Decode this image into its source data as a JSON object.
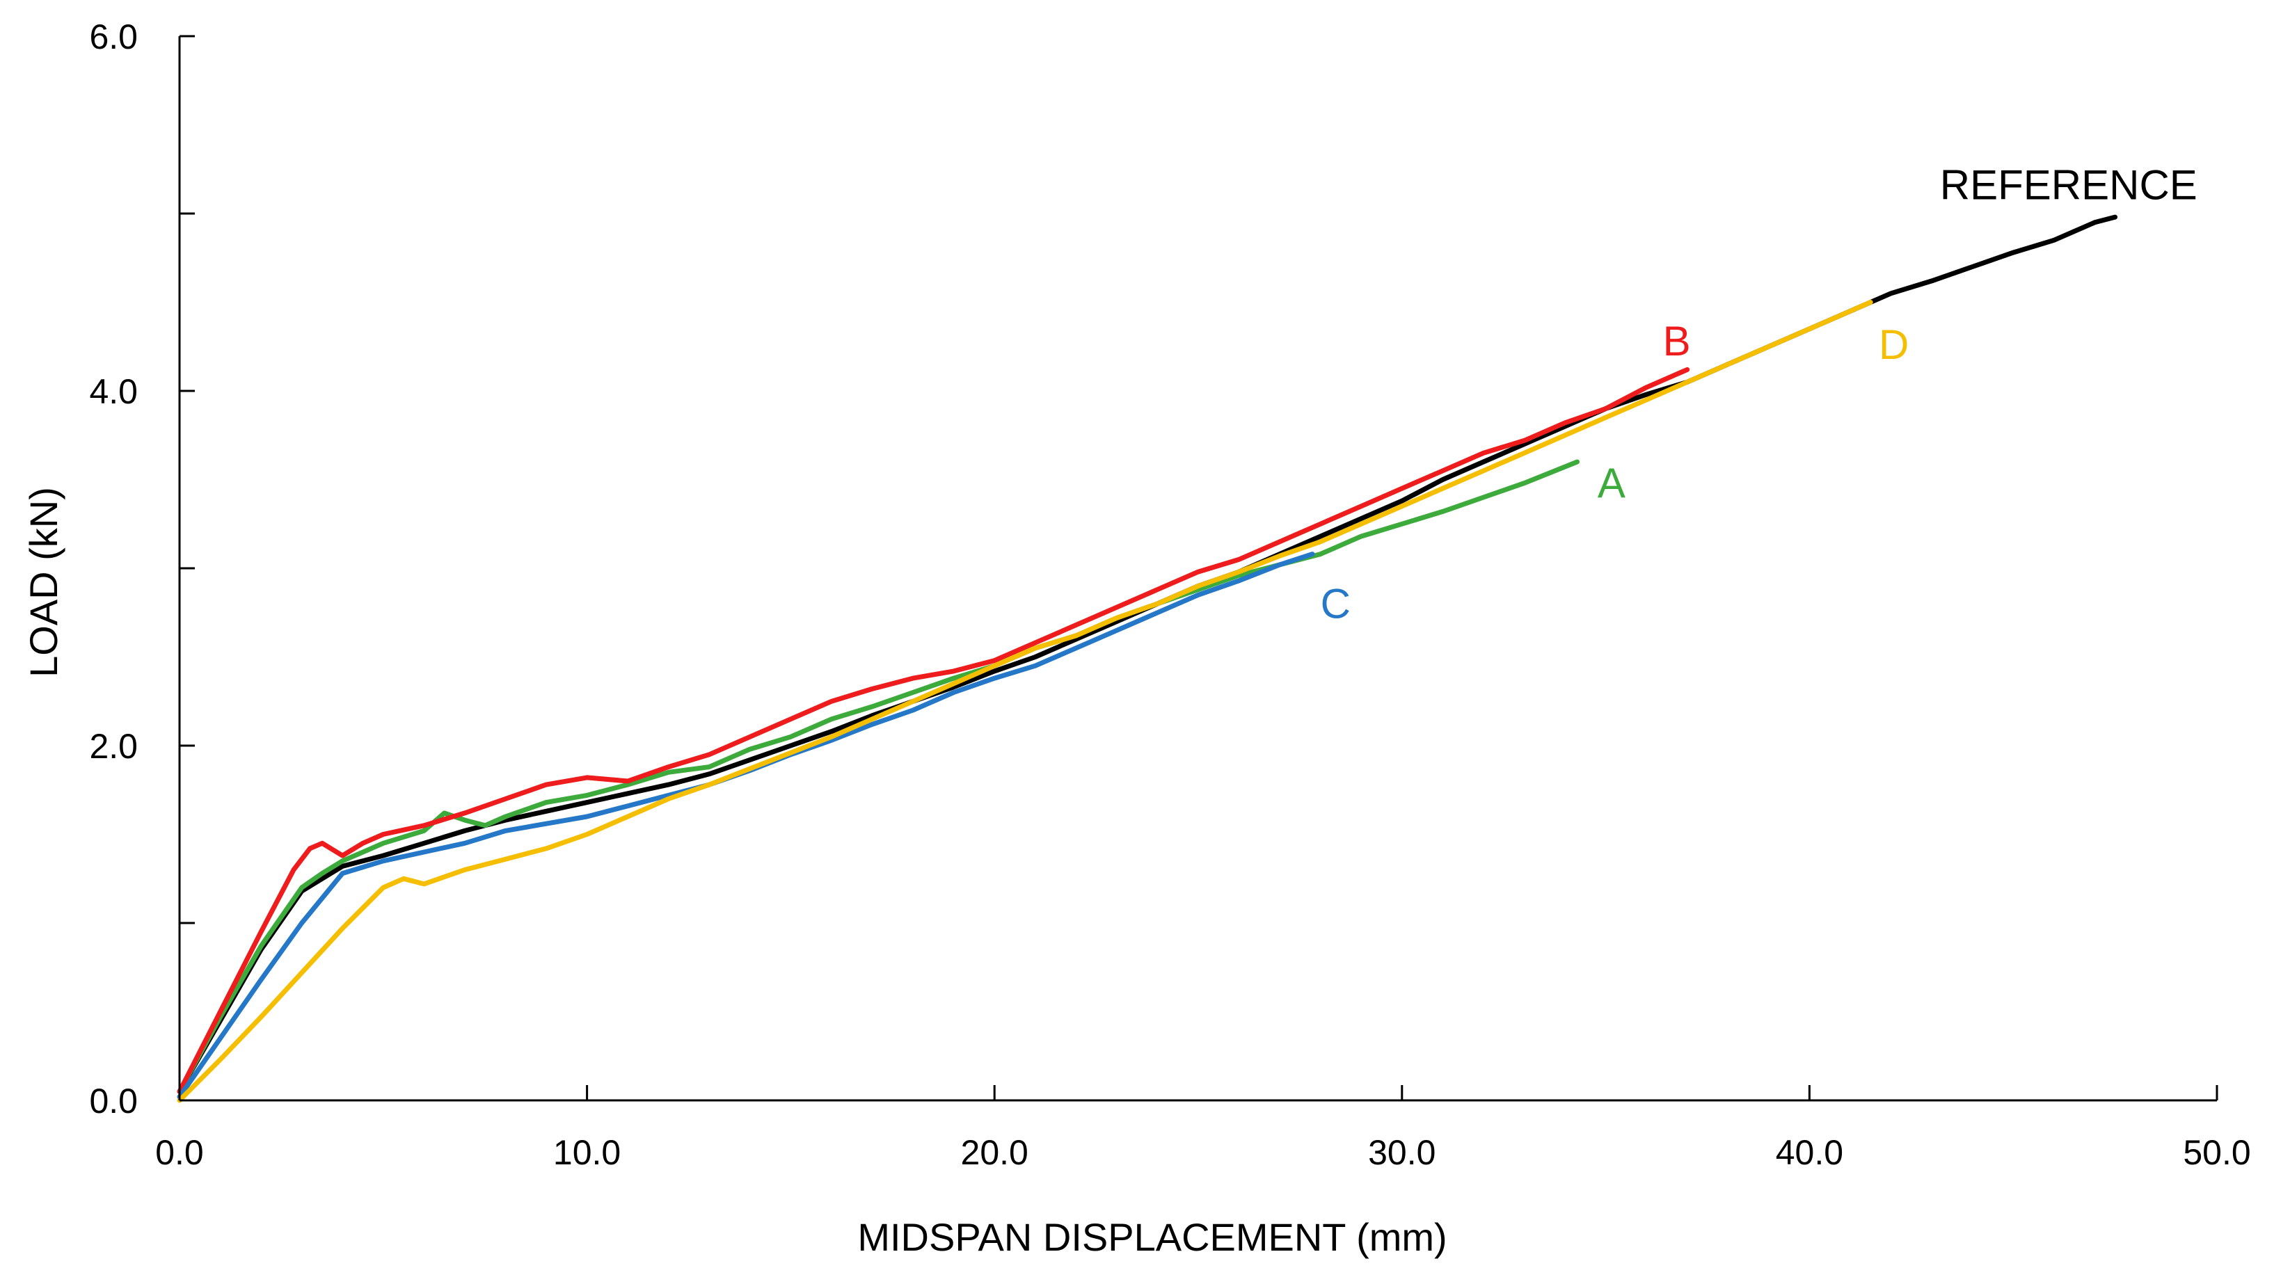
{
  "chart_data": {
    "type": "line",
    "title": "",
    "xlabel": "MIDSPAN DISPLACEMENT (mm)",
    "ylabel": "LOAD (kN)",
    "xlim": [
      0,
      50
    ],
    "ylim": [
      0,
      6
    ],
    "grid": false,
    "x_ticks": [
      0,
      10,
      20,
      30,
      40,
      50
    ],
    "x_tick_labels": [
      "0.0",
      "10.0",
      "20.0",
      "30.0",
      "40.0",
      "50.0"
    ],
    "y_ticks": [
      0,
      1,
      2,
      3,
      4,
      5,
      6
    ],
    "y_tick_labels": [
      "0.0",
      "",
      "2.0",
      "",
      "4.0",
      "",
      "6.0"
    ],
    "series": [
      {
        "name": "A",
        "label": "A",
        "color": "#3CAB3C",
        "label_at": [
          34.8,
          3.4
        ],
        "points": [
          [
            0,
            0.05
          ],
          [
            1,
            0.47
          ],
          [
            2,
            0.87
          ],
          [
            3,
            1.2
          ],
          [
            3.5,
            1.28
          ],
          [
            4,
            1.35
          ],
          [
            5,
            1.45
          ],
          [
            6,
            1.52
          ],
          [
            6.5,
            1.62
          ],
          [
            7,
            1.58
          ],
          [
            7.5,
            1.55
          ],
          [
            8,
            1.6
          ],
          [
            9,
            1.68
          ],
          [
            10,
            1.72
          ],
          [
            11,
            1.78
          ],
          [
            12,
            1.85
          ],
          [
            13,
            1.88
          ],
          [
            14,
            1.98
          ],
          [
            15,
            2.05
          ],
          [
            16,
            2.15
          ],
          [
            17,
            2.22
          ],
          [
            18,
            2.3
          ],
          [
            19,
            2.38
          ],
          [
            20,
            2.45
          ],
          [
            21,
            2.55
          ],
          [
            22,
            2.62
          ],
          [
            23,
            2.72
          ],
          [
            24,
            2.8
          ],
          [
            25,
            2.88
          ],
          [
            26,
            2.96
          ],
          [
            27,
            3.02
          ],
          [
            28,
            3.08
          ],
          [
            29,
            3.18
          ],
          [
            30,
            3.25
          ],
          [
            31,
            3.32
          ],
          [
            32,
            3.4
          ],
          [
            33,
            3.48
          ],
          [
            34.3,
            3.6
          ]
        ]
      },
      {
        "name": "B",
        "label": "B",
        "color": "#EE1C1C",
        "label_at": [
          36.4,
          4.2
        ],
        "points": [
          [
            0,
            0.05
          ],
          [
            1,
            0.5
          ],
          [
            2,
            0.95
          ],
          [
            2.8,
            1.3
          ],
          [
            3.2,
            1.42
          ],
          [
            3.5,
            1.45
          ],
          [
            4,
            1.38
          ],
          [
            4.5,
            1.45
          ],
          [
            5,
            1.5
          ],
          [
            6,
            1.55
          ],
          [
            7,
            1.62
          ],
          [
            8,
            1.7
          ],
          [
            9,
            1.78
          ],
          [
            10,
            1.82
          ],
          [
            11,
            1.8
          ],
          [
            12,
            1.88
          ],
          [
            13,
            1.95
          ],
          [
            14,
            2.05
          ],
          [
            15,
            2.15
          ],
          [
            16,
            2.25
          ],
          [
            17,
            2.32
          ],
          [
            18,
            2.38
          ],
          [
            19,
            2.42
          ],
          [
            20,
            2.48
          ],
          [
            21,
            2.58
          ],
          [
            22,
            2.68
          ],
          [
            23,
            2.78
          ],
          [
            24,
            2.88
          ],
          [
            25,
            2.98
          ],
          [
            26,
            3.05
          ],
          [
            27,
            3.15
          ],
          [
            28,
            3.25
          ],
          [
            29,
            3.35
          ],
          [
            30,
            3.45
          ],
          [
            31,
            3.55
          ],
          [
            32,
            3.65
          ],
          [
            33,
            3.72
          ],
          [
            34,
            3.82
          ],
          [
            35,
            3.9
          ],
          [
            36,
            4.02
          ],
          [
            37,
            4.12
          ]
        ]
      },
      {
        "name": "C",
        "label": "C",
        "color": "#2578C8",
        "label_at": [
          28.0,
          2.72
        ],
        "points": [
          [
            0,
            0.02
          ],
          [
            1,
            0.35
          ],
          [
            2,
            0.68
          ],
          [
            3,
            1.0
          ],
          [
            4,
            1.28
          ],
          [
            5,
            1.35
          ],
          [
            6,
            1.4
          ],
          [
            7,
            1.45
          ],
          [
            8,
            1.52
          ],
          [
            9,
            1.56
          ],
          [
            10,
            1.6
          ],
          [
            11,
            1.66
          ],
          [
            12,
            1.72
          ],
          [
            13,
            1.78
          ],
          [
            14,
            1.86
          ],
          [
            15,
            1.95
          ],
          [
            16,
            2.03
          ],
          [
            17,
            2.12
          ],
          [
            18,
            2.2
          ],
          [
            19,
            2.3
          ],
          [
            20,
            2.38
          ],
          [
            21,
            2.45
          ],
          [
            22,
            2.55
          ],
          [
            23,
            2.65
          ],
          [
            24,
            2.75
          ],
          [
            25,
            2.85
          ],
          [
            26,
            2.93
          ],
          [
            27,
            3.02
          ],
          [
            27.8,
            3.08
          ]
        ]
      },
      {
        "name": "D",
        "label": "D",
        "color": "#F5BE00",
        "label_at": [
          41.7,
          4.18
        ],
        "points": [
          [
            0,
            0
          ],
          [
            1,
            0.23
          ],
          [
            2,
            0.47
          ],
          [
            3,
            0.72
          ],
          [
            4,
            0.97
          ],
          [
            5,
            1.2
          ],
          [
            5.5,
            1.25
          ],
          [
            6,
            1.22
          ],
          [
            7,
            1.3
          ],
          [
            8,
            1.36
          ],
          [
            9,
            1.42
          ],
          [
            10,
            1.5
          ],
          [
            11,
            1.6
          ],
          [
            12,
            1.7
          ],
          [
            13,
            1.78
          ],
          [
            14,
            1.87
          ],
          [
            15,
            1.96
          ],
          [
            16,
            2.05
          ],
          [
            17,
            2.15
          ],
          [
            18,
            2.25
          ],
          [
            19,
            2.35
          ],
          [
            20,
            2.45
          ],
          [
            21,
            2.55
          ],
          [
            22,
            2.62
          ],
          [
            23,
            2.72
          ],
          [
            24,
            2.8
          ],
          [
            25,
            2.9
          ],
          [
            26,
            2.98
          ],
          [
            27,
            3.07
          ],
          [
            28,
            3.15
          ],
          [
            29,
            3.25
          ],
          [
            30,
            3.35
          ],
          [
            31,
            3.45
          ],
          [
            32,
            3.55
          ],
          [
            33,
            3.65
          ],
          [
            34,
            3.75
          ],
          [
            35,
            3.85
          ],
          [
            36,
            3.95
          ],
          [
            37,
            4.05
          ],
          [
            38,
            4.15
          ],
          [
            39,
            4.25
          ],
          [
            40,
            4.35
          ],
          [
            41,
            4.45
          ],
          [
            41.5,
            4.5
          ]
        ]
      },
      {
        "name": "REFERENCE",
        "label": "REFERENCE",
        "color": "#000000",
        "label_at": [
          43.2,
          5.08
        ],
        "points": [
          [
            0,
            0.05
          ],
          [
            1,
            0.45
          ],
          [
            2,
            0.85
          ],
          [
            3,
            1.18
          ],
          [
            4,
            1.32
          ],
          [
            5,
            1.38
          ],
          [
            6,
            1.45
          ],
          [
            7,
            1.52
          ],
          [
            8,
            1.58
          ],
          [
            9,
            1.63
          ],
          [
            10,
            1.68
          ],
          [
            11,
            1.73
          ],
          [
            12,
            1.78
          ],
          [
            13,
            1.84
          ],
          [
            14,
            1.92
          ],
          [
            15,
            2.0
          ],
          [
            16,
            2.08
          ],
          [
            17,
            2.17
          ],
          [
            18,
            2.25
          ],
          [
            19,
            2.33
          ],
          [
            20,
            2.42
          ],
          [
            21,
            2.5
          ],
          [
            22,
            2.6
          ],
          [
            23,
            2.7
          ],
          [
            24,
            2.8
          ],
          [
            25,
            2.9
          ],
          [
            26,
            2.98
          ],
          [
            27,
            3.08
          ],
          [
            28,
            3.18
          ],
          [
            29,
            3.28
          ],
          [
            30,
            3.38
          ],
          [
            31,
            3.5
          ],
          [
            32,
            3.6
          ],
          [
            33,
            3.7
          ],
          [
            34,
            3.8
          ],
          [
            35,
            3.9
          ],
          [
            36,
            3.98
          ],
          [
            37,
            4.05
          ],
          [
            38,
            4.15
          ],
          [
            39,
            4.25
          ],
          [
            40,
            4.35
          ],
          [
            41,
            4.45
          ],
          [
            42,
            4.55
          ],
          [
            43,
            4.62
          ],
          [
            44,
            4.7
          ],
          [
            45,
            4.78
          ],
          [
            46,
            4.85
          ],
          [
            47,
            4.95
          ],
          [
            47.5,
            4.98
          ]
        ]
      }
    ]
  }
}
